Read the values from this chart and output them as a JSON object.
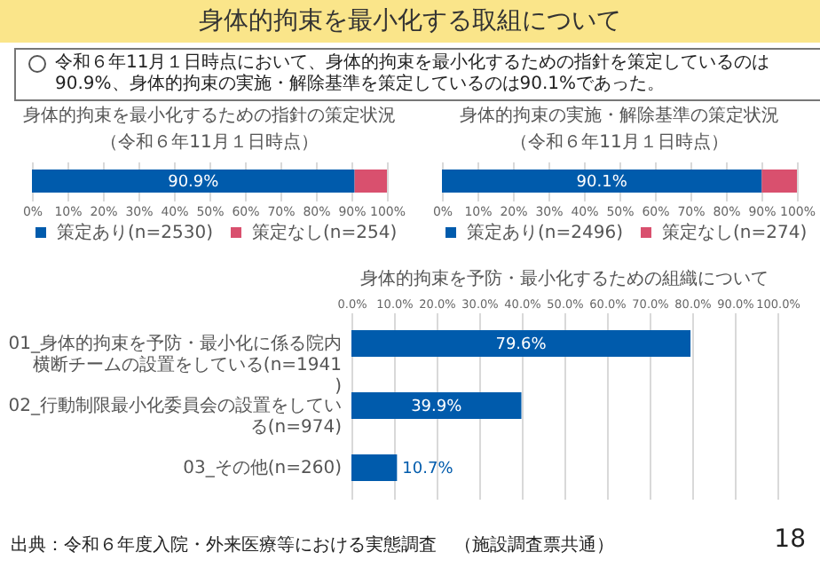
{
  "chart_data": [
    {
      "type": "other",
      "title": "身体的拘束を最小化する取組について",
      "annotations": [
        "令和６年11月１日時点において、身体的拘束を最小化するための指針を策定しているのは90.9%、身体的拘束の実施・解除基準を策定しているのは90.1%であった。",
        "出典：令和６年度入院・外来医療等における実態調査　（施設調査票共通）",
        "18"
      ]
    },
    {
      "type": "bar",
      "orientation": "horizontal",
      "stacked": true,
      "title": "身体的拘束を最小化するための指針の策定状況",
      "subtitle": "（令和６年11月１日時点）",
      "categories": [
        null
      ],
      "series": [
        {
          "name": "策定あり(n=2530)",
          "color": "#005bac",
          "values": [
            90.9
          ],
          "value_labels": [
            "90.9%"
          ]
        },
        {
          "name": "策定なし(n=254)",
          "color": "#d9506e",
          "values": [
            9.1
          ]
        }
      ],
      "xlim": [
        0,
        100
      ],
      "xticks": [
        {
          "value": 0,
          "label": "0%"
        },
        {
          "value": 10,
          "label": "10%"
        },
        {
          "value": 20,
          "label": "20%"
        },
        {
          "value": 30,
          "label": "30%"
        },
        {
          "value": 40,
          "label": "40%"
        },
        {
          "value": 50,
          "label": "50%"
        },
        {
          "value": 60,
          "label": "60%"
        },
        {
          "value": 70,
          "label": "70%"
        },
        {
          "value": 80,
          "label": "80%"
        },
        {
          "value": 90,
          "label": "90%"
        },
        {
          "value": 100,
          "label": "100%"
        }
      ],
      "grid": "x",
      "legend": "bottom"
    },
    {
      "type": "bar",
      "orientation": "horizontal",
      "stacked": true,
      "title": "身体的拘束の実施・解除基準の策定状況",
      "subtitle": "（令和６年11月１日時点）",
      "categories": [
        null
      ],
      "series": [
        {
          "name": "策定あり(n=2496)",
          "color": "#005bac",
          "values": [
            90.1
          ],
          "value_labels": [
            "90.1%"
          ]
        },
        {
          "name": "策定なし(n=274)",
          "color": "#d9506e",
          "values": [
            9.9
          ]
        }
      ],
      "xlim": [
        0,
        100
      ],
      "xticks": [
        {
          "value": 0,
          "label": "0%"
        },
        {
          "value": 10,
          "label": "10%"
        },
        {
          "value": 20,
          "label": "20%"
        },
        {
          "value": 30,
          "label": "30%"
        },
        {
          "value": 40,
          "label": "40%"
        },
        {
          "value": 50,
          "label": "50%"
        },
        {
          "value": 60,
          "label": "60%"
        },
        {
          "value": 70,
          "label": "70%"
        },
        {
          "value": 80,
          "label": "80%"
        },
        {
          "value": 90,
          "label": "90%"
        },
        {
          "value": 100,
          "label": "100%"
        }
      ],
      "grid": "x",
      "legend": "bottom"
    },
    {
      "type": "bar",
      "orientation": "horizontal",
      "title": "身体的拘束を予防・最小化するための組織について",
      "categories": [
        "01_身体的拘束を予防・最小化に係る院内横断チームの設置をしている(n=1941)",
        "02_行動制限最小化委員会の設置をしている(n=974)",
        "03_その他(n=260)"
      ],
      "color": "#005bac",
      "values": [
        79.6,
        39.9,
        10.7
      ],
      "value_labels": [
        "79.6%",
        "39.9%",
        "10.7%"
      ],
      "xlim": [
        0,
        100
      ],
      "xticks": [
        {
          "value": 0,
          "label": "0.0%"
        },
        {
          "value": 10,
          "label": "10.0%"
        },
        {
          "value": 20,
          "label": "20.0%"
        },
        {
          "value": 30,
          "label": "30.0%"
        },
        {
          "value": 40,
          "label": "40.0%"
        },
        {
          "value": 50,
          "label": "50.0%"
        },
        {
          "value": 60,
          "label": "60.0%"
        },
        {
          "value": 70,
          "label": "70.0%"
        },
        {
          "value": 80,
          "label": "80.0%"
        },
        {
          "value": 90,
          "label": "90.0%"
        },
        {
          "value": 100,
          "label": "100.0%"
        }
      ],
      "grid": "x"
    }
  ]
}
